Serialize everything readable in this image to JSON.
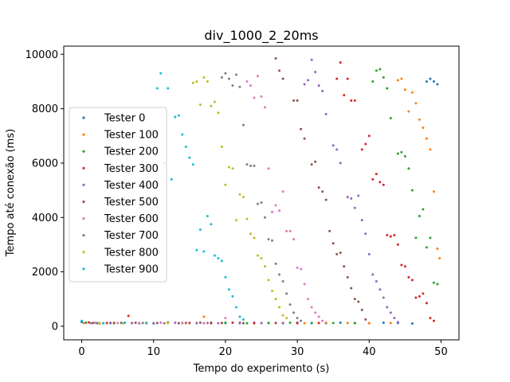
{
  "chart_data": {
    "type": "scatter",
    "title": "div_1000_2_20ms",
    "xlabel": "Tempo do experimento (s)",
    "ylabel": "Tempo até conexão (ms)",
    "xlim": [
      -2.5,
      52.5
    ],
    "ylim": [
      -500,
      10300
    ],
    "xticks": [
      0,
      10,
      20,
      30,
      40,
      50
    ],
    "yticks": [
      0,
      2000,
      4000,
      6000,
      8000,
      10000
    ],
    "xtick_labels": [
      "0",
      "10",
      "20",
      "30",
      "40",
      "50"
    ],
    "ytick_labels": [
      "0",
      "2000",
      "4000",
      "6000",
      "8000",
      "10000"
    ],
    "legend_position": "center-left",
    "grid": false,
    "series": [
      {
        "name": "Tester 0",
        "color": "#1f77b4",
        "points": [
          [
            0,
            150
          ],
          [
            2,
            120
          ],
          [
            4,
            110
          ],
          [
            6,
            130
          ],
          [
            8,
            120
          ],
          [
            10,
            100
          ],
          [
            12,
            140
          ],
          [
            14,
            120
          ],
          [
            16,
            110
          ],
          [
            18,
            130
          ],
          [
            20,
            120
          ],
          [
            22,
            110
          ],
          [
            24,
            130
          ],
          [
            26,
            120
          ],
          [
            28,
            110
          ],
          [
            30,
            130
          ],
          [
            32,
            120
          ],
          [
            34,
            110
          ],
          [
            36,
            130
          ],
          [
            38,
            120
          ],
          [
            40,
            110
          ],
          [
            42,
            130
          ],
          [
            44,
            120
          ],
          [
            46,
            100
          ],
          [
            48,
            9000
          ],
          [
            48.5,
            9100
          ],
          [
            49,
            9000
          ],
          [
            49.5,
            8900
          ]
        ]
      },
      {
        "name": "Tester 100",
        "color": "#ff7f0e",
        "points": [
          [
            0.3,
            120
          ],
          [
            2.5,
            100
          ],
          [
            4.5,
            130
          ],
          [
            7,
            110
          ],
          [
            9,
            120
          ],
          [
            12,
            130
          ],
          [
            14.5,
            110
          ],
          [
            17,
            350
          ],
          [
            19.5,
            120
          ],
          [
            22,
            130
          ],
          [
            25,
            110
          ],
          [
            28,
            120
          ],
          [
            31,
            110
          ],
          [
            34,
            130
          ],
          [
            37,
            120
          ],
          [
            40,
            110
          ],
          [
            43,
            120
          ],
          [
            44,
            9050
          ],
          [
            44.5,
            9100
          ],
          [
            45,
            8700
          ],
          [
            45.5,
            7900
          ],
          [
            46,
            8600
          ],
          [
            46.5,
            8200
          ],
          [
            47,
            7600
          ],
          [
            47.5,
            7300
          ],
          [
            48,
            6900
          ],
          [
            48.5,
            6500
          ],
          [
            49,
            4950
          ],
          [
            49.5,
            2850
          ],
          [
            49.8,
            2500
          ]
        ]
      },
      {
        "name": "Tester 200",
        "color": "#2ca02c",
        "points": [
          [
            0.6,
            130
          ],
          [
            3,
            110
          ],
          [
            5.5,
            120
          ],
          [
            8,
            100
          ],
          [
            11,
            130
          ],
          [
            14,
            120
          ],
          [
            17,
            110
          ],
          [
            20,
            130
          ],
          [
            23,
            110
          ],
          [
            26,
            120
          ],
          [
            29,
            130
          ],
          [
            32,
            110
          ],
          [
            35,
            120
          ],
          [
            38,
            110
          ],
          [
            40.5,
            9000
          ],
          [
            41,
            9400
          ],
          [
            41.5,
            9450
          ],
          [
            42,
            9150
          ],
          [
            42.5,
            8750
          ],
          [
            43,
            7650
          ],
          [
            44,
            6350
          ],
          [
            44.5,
            6400
          ],
          [
            45,
            6250
          ],
          [
            45.5,
            5800
          ],
          [
            46,
            5000
          ],
          [
            46.5,
            3250
          ],
          [
            47,
            4050
          ],
          [
            47.5,
            4300
          ],
          [
            48,
            2900
          ],
          [
            48.5,
            3250
          ],
          [
            49,
            1600
          ],
          [
            49.5,
            1550
          ]
        ]
      },
      {
        "name": "Tester 300",
        "color": "#d62728",
        "points": [
          [
            1,
            140
          ],
          [
            3.5,
            120
          ],
          [
            6.5,
            380
          ],
          [
            9,
            110
          ],
          [
            12,
            130
          ],
          [
            15,
            120
          ],
          [
            18,
            110
          ],
          [
            21,
            130
          ],
          [
            24,
            110
          ],
          [
            27,
            120
          ],
          [
            30,
            110
          ],
          [
            33,
            120
          ],
          [
            35.5,
            9100
          ],
          [
            36,
            9700
          ],
          [
            36.5,
            8500
          ],
          [
            37,
            9100
          ],
          [
            37.5,
            8300
          ],
          [
            38,
            8300
          ],
          [
            39,
            6500
          ],
          [
            39.5,
            6700
          ],
          [
            40,
            7000
          ],
          [
            40.5,
            5400
          ],
          [
            41,
            5600
          ],
          [
            41.5,
            5300
          ],
          [
            42,
            5200
          ],
          [
            42.5,
            3350
          ],
          [
            43,
            3300
          ],
          [
            43.5,
            3350
          ],
          [
            44,
            3000
          ],
          [
            44.5,
            2250
          ],
          [
            45,
            2200
          ],
          [
            45.5,
            1800
          ],
          [
            46,
            1700
          ],
          [
            46.5,
            1050
          ],
          [
            47,
            1100
          ],
          [
            47.5,
            1200
          ],
          [
            48,
            850
          ],
          [
            48.5,
            300
          ],
          [
            49,
            200
          ]
        ]
      },
      {
        "name": "Tester 400",
        "color": "#9467bd",
        "points": [
          [
            1.3,
            110
          ],
          [
            4,
            130
          ],
          [
            7,
            120
          ],
          [
            10,
            110
          ],
          [
            13,
            130
          ],
          [
            16,
            120
          ],
          [
            19,
            110
          ],
          [
            22,
            130
          ],
          [
            25,
            120
          ],
          [
            28,
            110
          ],
          [
            31,
            8900
          ],
          [
            31.5,
            9050
          ],
          [
            32,
            9800
          ],
          [
            32.5,
            9350
          ],
          [
            33,
            8850
          ],
          [
            33.5,
            8650
          ],
          [
            34,
            7800
          ],
          [
            35,
            6650
          ],
          [
            35.5,
            6500
          ],
          [
            36,
            6000
          ],
          [
            37,
            4750
          ],
          [
            37.5,
            4700
          ],
          [
            38,
            4350
          ],
          [
            38.5,
            4800
          ],
          [
            39,
            3900
          ],
          [
            39.5,
            3400
          ],
          [
            40,
            2650
          ],
          [
            40.5,
            1900
          ],
          [
            41,
            1650
          ],
          [
            41.5,
            1350
          ],
          [
            42,
            1050
          ],
          [
            42.5,
            700
          ],
          [
            43,
            500
          ],
          [
            43.5,
            300
          ],
          [
            44,
            150
          ]
        ]
      },
      {
        "name": "Tester 500",
        "color": "#8c564b",
        "points": [
          [
            1.6,
            120
          ],
          [
            4.5,
            110
          ],
          [
            7.5,
            130
          ],
          [
            10.5,
            120
          ],
          [
            13.5,
            110
          ],
          [
            16.5,
            130
          ],
          [
            19.5,
            120
          ],
          [
            22.5,
            110
          ],
          [
            27,
            9850
          ],
          [
            27.5,
            9400
          ],
          [
            28,
            9100
          ],
          [
            29.5,
            8300
          ],
          [
            30,
            8300
          ],
          [
            30.5,
            7250
          ],
          [
            31,
            6900
          ],
          [
            32,
            5950
          ],
          [
            32.5,
            6050
          ],
          [
            33,
            5100
          ],
          [
            33.5,
            4950
          ],
          [
            34,
            4650
          ],
          [
            34.5,
            3500
          ],
          [
            35,
            3050
          ],
          [
            35.5,
            2650
          ],
          [
            36,
            2700
          ],
          [
            36.5,
            2200
          ],
          [
            37,
            1800
          ],
          [
            37.5,
            1400
          ],
          [
            38,
            1000
          ],
          [
            38.5,
            900
          ],
          [
            39,
            600
          ],
          [
            39.5,
            250
          ]
        ]
      },
      {
        "name": "Tester 600",
        "color": "#e377c2",
        "points": [
          [
            1.9,
            130
          ],
          [
            5,
            120
          ],
          [
            8,
            110
          ],
          [
            11,
            130
          ],
          [
            14,
            120
          ],
          [
            17,
            110
          ],
          [
            20,
            300
          ],
          [
            23,
            9000
          ],
          [
            23.5,
            8850
          ],
          [
            24,
            8400
          ],
          [
            24.5,
            9200
          ],
          [
            25,
            8450
          ],
          [
            25.5,
            8050
          ],
          [
            26,
            5800
          ],
          [
            26.5,
            4200
          ],
          [
            27,
            4450
          ],
          [
            27.5,
            4250
          ],
          [
            28,
            4950
          ],
          [
            28.5,
            3500
          ],
          [
            29,
            3500
          ],
          [
            29.5,
            3200
          ],
          [
            30,
            2150
          ],
          [
            30.5,
            2100
          ],
          [
            31,
            1550
          ],
          [
            31.5,
            1000
          ],
          [
            32,
            700
          ],
          [
            32.5,
            500
          ],
          [
            33,
            350
          ],
          [
            33.5,
            200
          ]
        ]
      },
      {
        "name": "Tester 700",
        "color": "#7f7f7f",
        "points": [
          [
            2.2,
            110
          ],
          [
            5.5,
            130
          ],
          [
            8.5,
            120
          ],
          [
            11.5,
            110
          ],
          [
            14.5,
            130
          ],
          [
            17.5,
            120
          ],
          [
            19.5,
            9150
          ],
          [
            20,
            9300
          ],
          [
            20.5,
            9100
          ],
          [
            21,
            8850
          ],
          [
            21.5,
            9250
          ],
          [
            22,
            8800
          ],
          [
            22.5,
            7400
          ],
          [
            23,
            5950
          ],
          [
            23.5,
            5900
          ],
          [
            24,
            5900
          ],
          [
            24.5,
            4500
          ],
          [
            25,
            4550
          ],
          [
            25.5,
            4000
          ],
          [
            26,
            3200
          ],
          [
            26.5,
            3150
          ],
          [
            27,
            2300
          ],
          [
            27.5,
            1900
          ],
          [
            28,
            1650
          ],
          [
            28.5,
            1200
          ],
          [
            29,
            800
          ],
          [
            29.5,
            500
          ],
          [
            30,
            300
          ],
          [
            30.5,
            200
          ]
        ]
      },
      {
        "name": "Tester 800",
        "color": "#bcbd22",
        "points": [
          [
            2.5,
            120
          ],
          [
            5.8,
            110
          ],
          [
            9,
            130
          ],
          [
            12,
            120
          ],
          [
            15.5,
            8950
          ],
          [
            16,
            9000
          ],
          [
            16.5,
            8150
          ],
          [
            17,
            9150
          ],
          [
            17.5,
            9000
          ],
          [
            18,
            8100
          ],
          [
            18.5,
            8250
          ],
          [
            19,
            7850
          ],
          [
            19.5,
            6600
          ],
          [
            20,
            5200
          ],
          [
            20.5,
            5850
          ],
          [
            21,
            5800
          ],
          [
            21.5,
            3900
          ],
          [
            22,
            4850
          ],
          [
            22.5,
            4750
          ],
          [
            23,
            3950
          ],
          [
            23.5,
            3400
          ],
          [
            24,
            3250
          ],
          [
            24.5,
            2600
          ],
          [
            25,
            2500
          ],
          [
            25.5,
            2200
          ],
          [
            26,
            1700
          ],
          [
            26.5,
            1300
          ],
          [
            27,
            1000
          ],
          [
            27.5,
            700
          ],
          [
            28,
            400
          ],
          [
            28.5,
            300
          ]
        ]
      },
      {
        "name": "Tester 900",
        "color": "#17becf",
        "points": [
          [
            0,
            200
          ],
          [
            3,
            110
          ],
          [
            6,
            130
          ],
          [
            9,
            120
          ],
          [
            10.5,
            8750
          ],
          [
            11,
            9300
          ],
          [
            12,
            8750
          ],
          [
            12.5,
            5400
          ],
          [
            13,
            7700
          ],
          [
            13.5,
            7750
          ],
          [
            11.5,
            6000
          ],
          [
            14,
            7050
          ],
          [
            14.5,
            6600
          ],
          [
            15,
            6200
          ],
          [
            15.5,
            5950
          ],
          [
            16,
            2800
          ],
          [
            16.5,
            3550
          ],
          [
            17,
            2750
          ],
          [
            17.5,
            4050
          ],
          [
            18,
            3750
          ],
          [
            18.5,
            2600
          ],
          [
            19,
            2500
          ],
          [
            19.5,
            2400
          ],
          [
            20,
            1800
          ],
          [
            20.5,
            1350
          ],
          [
            21,
            1100
          ],
          [
            21.5,
            700
          ],
          [
            22,
            350
          ],
          [
            22.5,
            250
          ]
        ]
      }
    ]
  }
}
